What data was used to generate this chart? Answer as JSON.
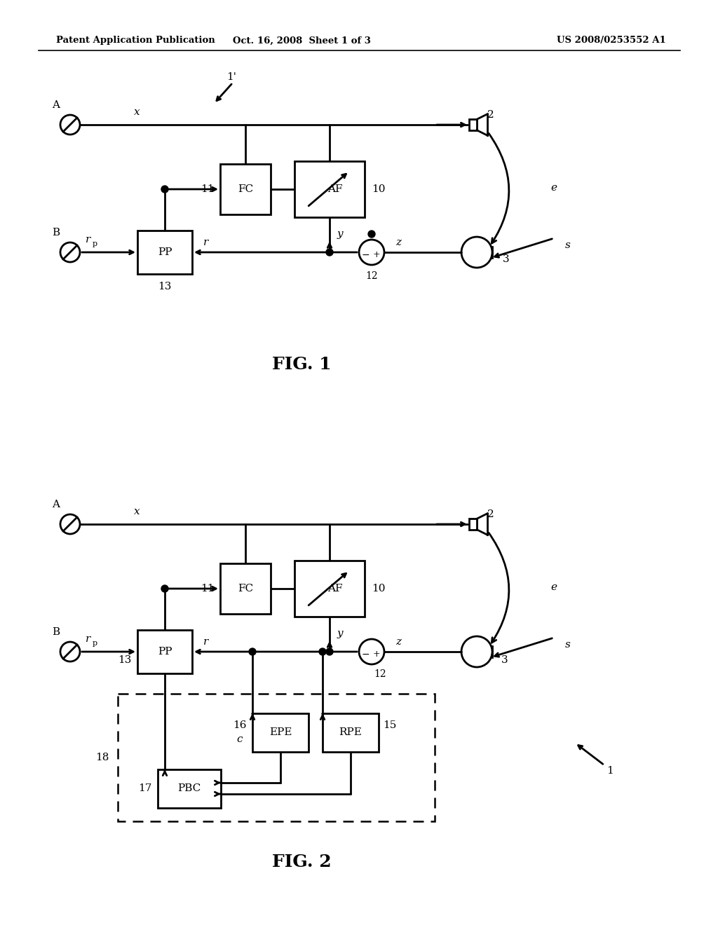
{
  "title_left": "Patent Application Publication",
  "title_center": "Oct. 16, 2008  Sheet 1 of 3",
  "title_right": "US 2008/0253552 A1",
  "background_color": "#ffffff",
  "line_color": "#000000",
  "fig1_caption": "FIG. 1",
  "fig2_caption": "FIG. 2"
}
